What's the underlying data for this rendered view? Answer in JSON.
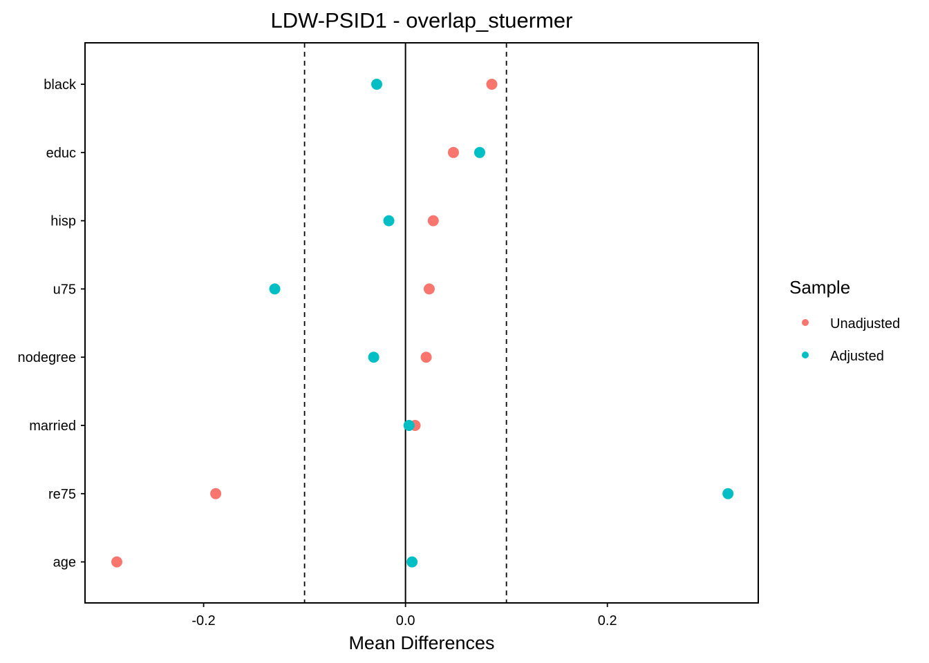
{
  "chart_data": {
    "type": "scatter",
    "title": "LDW-PSID1 - overlap_stuermer",
    "xlabel": "Mean Differences",
    "ylabel": "",
    "xlim": [
      -0.3175,
      0.3495
    ],
    "xticks": [
      -0.2,
      0.0,
      0.2
    ],
    "xtick_labels": [
      "-0.2",
      "0.0",
      "0.2"
    ],
    "categories": [
      "black",
      "educ",
      "hisp",
      "u75",
      "nodegree",
      "married",
      "re75",
      "age"
    ],
    "reference_line": 0,
    "threshold_lines": [
      -0.1,
      0.1
    ],
    "grid": false,
    "legend": {
      "title": "Sample",
      "position": "right",
      "entries": [
        "Unadjusted",
        "Adjusted"
      ]
    },
    "series": [
      {
        "name": "Unadjusted",
        "color": "#F8766D",
        "values": [
          0.0855,
          0.0475,
          0.0275,
          0.0235,
          0.0205,
          0.0095,
          -0.188,
          -0.286
        ]
      },
      {
        "name": "Adjusted",
        "color": "#00BFC4",
        "values": [
          -0.0285,
          0.0735,
          -0.0165,
          -0.1295,
          -0.0315,
          0.0035,
          0.3195,
          0.0065
        ]
      }
    ]
  }
}
